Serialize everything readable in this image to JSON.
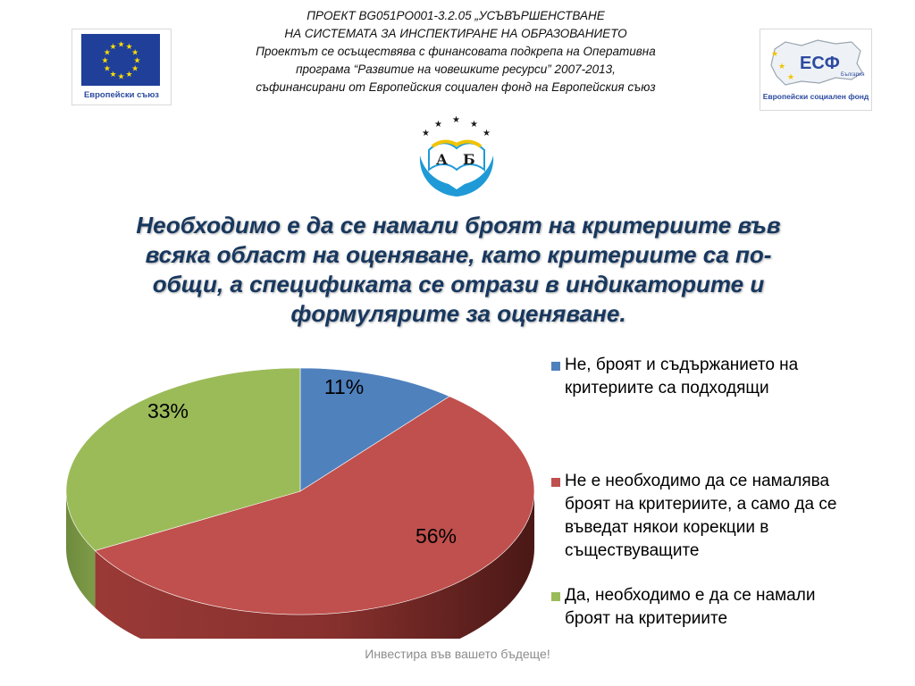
{
  "header": {
    "lines": [
      "ПРОЕКТ BG051PO001-3.2.05 „УСЪВЪРШЕНСТВАНЕ",
      "НА СИСТЕМАТА ЗА ИНСПЕКТИРАНЕ НА ОБРАЗОВАНИЕТО",
      "Проектът се осъществява с финансовата  подкрепа на Оперативна",
      "програма “Развитие на човешките ресурси” 2007-2013,",
      "съфинансирани от Европейския социален фонд на Европейския съюз"
    ]
  },
  "logos": {
    "eu_caption": "Европейски съюз",
    "esf_text": "ЕСФ",
    "esf_small": "България",
    "esf_caption": "Европейски социален фонд",
    "ab_letters": [
      "А",
      "Б"
    ]
  },
  "colors": {
    "title": "#17375e",
    "eu_blue": "#1f3f99",
    "eu_star": "#ffdd00"
  },
  "chart_data": {
    "type": "pie",
    "title": "Необходимо е да се намали броят на критериите във всяка област на оценяване, като критериите са по-общи, а спецификата се отрази в индикаторите и формулярите за оценяване.",
    "title_lines": [
      "Необходимо е да се намали броят на критериите във",
      "всяка област на оценяване, като критериите са по-",
      "общи, а спецификата се отрази в индикаторите и",
      "формулярите за оценяване."
    ],
    "style": "3d",
    "legend_placement": "right",
    "slices": [
      {
        "label": "Не, броят и съдържанието на критериите са подходящи",
        "label_lines": [
          "Не, броят и съдържанието на",
          "критериите са подходящи"
        ],
        "value": 11,
        "display": "11%",
        "color": "#4f81bd"
      },
      {
        "label": "Не е необходимо да се намалява броят на критериите, а само да се въведат някои корекции в съществуващите",
        "label_lines": [
          "Не е необходимо да се намалява",
          "броят на критериите, а само да се",
          "въведат някои корекции в",
          "съществуващите"
        ],
        "value": 56,
        "display": "56%",
        "color": "#c0504d"
      },
      {
        "label": "Да, необходимо е да се намали броят на критериите",
        "label_lines": [
          "Да, необходимо е да се намали",
          "броят на критериите"
        ],
        "value": 33,
        "display": "33%",
        "color": "#9bbb59"
      }
    ]
  },
  "footer": {
    "text": "Инвестира във вашето бъдеще!"
  }
}
